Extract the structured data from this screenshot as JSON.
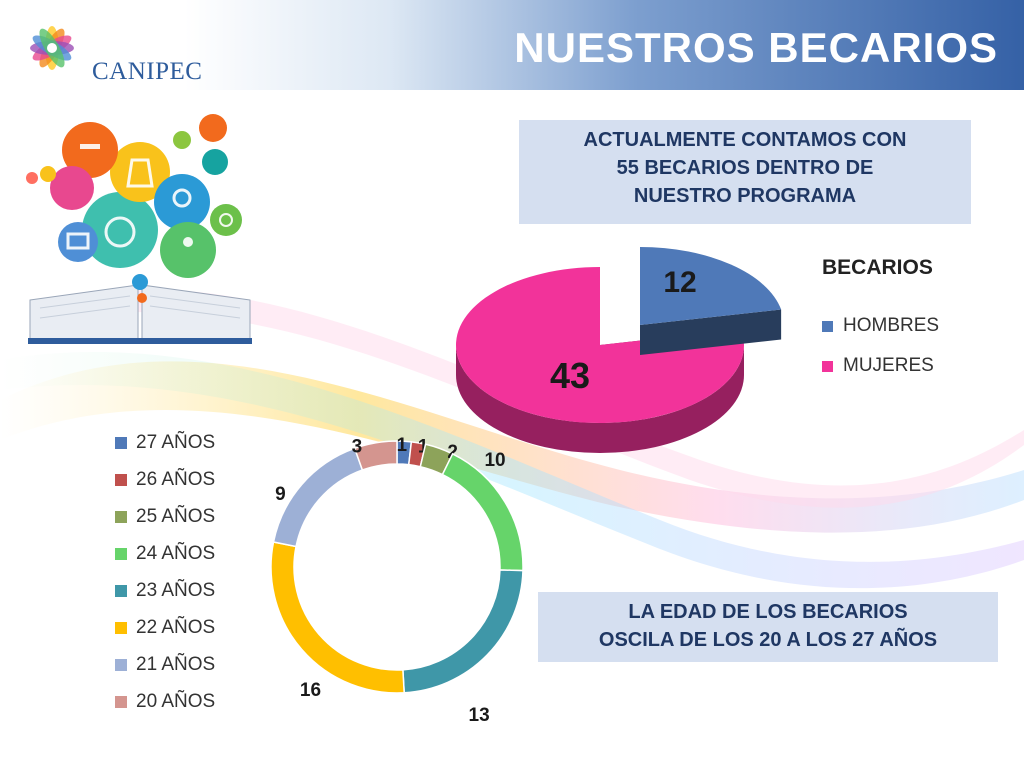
{
  "header": {
    "title": "NUESTROS BECARIOS",
    "logo_text": "CANIPEC"
  },
  "callouts": {
    "total_lines": [
      "ACTUALMENTE CONTAMOS CON",
      "55 BECARIOS DENTRO DE",
      "NUESTRO PROGRAMA"
    ],
    "age_lines": [
      "LA EDAD DE LOS BECARIOS",
      "OSCILA DE LOS 20 A LOS 27 AÑOS"
    ]
  },
  "chart_data": [
    {
      "type": "pie",
      "title": "BECARIOS",
      "legend_position": "right",
      "categories": [
        "HOMBRES",
        "MUJERES"
      ],
      "values": [
        12,
        43
      ],
      "colors": [
        "#4f79b8",
        "#f2339a"
      ],
      "data_labels": [
        "12",
        "43"
      ]
    },
    {
      "type": "pie",
      "style": "donut",
      "legend_position": "left",
      "categories": [
        "27 AÑOS",
        "26 AÑOS",
        "25 AÑOS",
        "24 AÑOS",
        "23 AÑOS",
        "22 AÑOS",
        "21 AÑOS",
        "20 AÑOS"
      ],
      "values": [
        1,
        1,
        2,
        10,
        13,
        16,
        9,
        3
      ],
      "colors": [
        "#4f79b8",
        "#c0504d",
        "#8da35a",
        "#66d46a",
        "#3f97a8",
        "#ffbf00",
        "#9db0d6",
        "#d4958f"
      ],
      "data_labels": [
        "1",
        "1",
        "2",
        "10",
        "13",
        "16",
        "9",
        "3"
      ]
    }
  ],
  "icons": {
    "logo": "canipec-logo-icon",
    "illustration": "education-book-icon"
  }
}
